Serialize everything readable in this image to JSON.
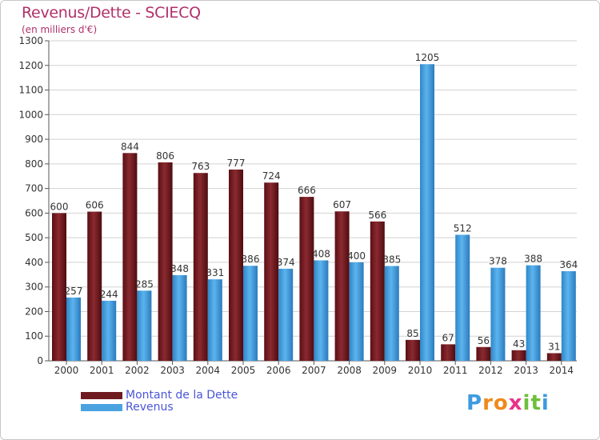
{
  "header": {
    "title": "Revenus/Dette - SCIECQ",
    "subtitle": "(en milliers d'€)"
  },
  "chart_data": {
    "type": "bar",
    "title": "Revenus/Dette - SCIECQ",
    "ylabel": "(en milliers d'€)",
    "xlabel": "",
    "ylim": [
      0,
      1300
    ],
    "yticks": [
      "0",
      "100",
      "200",
      "300",
      "400",
      "500",
      "600",
      "700",
      "800",
      "900",
      "1000",
      "1100",
      "1200",
      "1300"
    ],
    "grid": "horizontal",
    "categories": [
      "2000",
      "2001",
      "2002",
      "2003",
      "2004",
      "2005",
      "2006",
      "2007",
      "2008",
      "2009",
      "2010",
      "2011",
      "2012",
      "2013",
      "2014"
    ],
    "series": [
      {
        "name": "Montant de la Dette",
        "color": "#7a1f24",
        "values": [
          600,
          606,
          844,
          806,
          763,
          777,
          724,
          666,
          607,
          566,
          85,
          67,
          56,
          43,
          31
        ]
      },
      {
        "name": "Revenus",
        "color": "#4aa3e0",
        "values": [
          257,
          244,
          285,
          348,
          331,
          386,
          374,
          408,
          400,
          385,
          1205,
          512,
          378,
          388,
          364
        ]
      }
    ],
    "legend_position": "bottom-left"
  },
  "legend": {
    "items": [
      {
        "label": "Montant de la Dette",
        "color": "#7a1f24"
      },
      {
        "label": "Revenus",
        "color": "#4aa3e0"
      }
    ]
  },
  "logo": {
    "letters": [
      "P",
      "r",
      "o",
      "x",
      "i",
      "t",
      "i"
    ],
    "colors": [
      "#3d9be0",
      "#f08a1c",
      "#f08a1c",
      "#e8318a",
      "#6cbf3a",
      "#6cbf3a",
      "#3d9be0"
    ]
  }
}
